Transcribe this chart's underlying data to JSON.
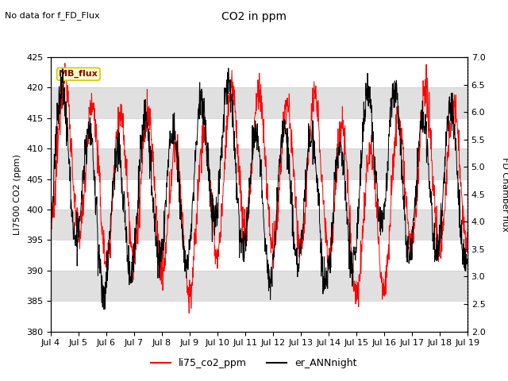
{
  "title": "CO2 in ppm",
  "top_left_text": "No data for f_FD_Flux",
  "ylabel_left": "LI7500 CO2 (ppm)",
  "ylabel_right": "FD Chamber flux",
  "ylim_left": [
    380,
    425
  ],
  "ylim_right": [
    2.0,
    7.0
  ],
  "yticks_left": [
    380,
    385,
    390,
    395,
    400,
    405,
    410,
    415,
    420,
    425
  ],
  "yticks_right": [
    2.0,
    2.5,
    3.0,
    3.5,
    4.0,
    4.5,
    5.0,
    5.5,
    6.0,
    6.5,
    7.0
  ],
  "xtick_labels": [
    "Jul 4",
    "Jul 5",
    "Jul 6",
    "Jul 7",
    "Jul 8",
    "Jul 9",
    "Jul 10",
    "Jul 11",
    "Jul 12",
    "Jul 13",
    "Jul 14",
    "Jul 15",
    "Jul 16",
    "Jul 17",
    "Jul 18",
    "Jul 19"
  ],
  "legend_entries": [
    "li75_co2_ppm",
    "er_ANNnight"
  ],
  "line1_color": "#ff0000",
  "line2_color": "#000000",
  "line1_linewidth": 0.7,
  "line2_linewidth": 0.7,
  "mb_flux_box_facecolor": "#ffffcc",
  "mb_flux_text_color": "#880000",
  "mb_flux_edge_color": "#cccc00",
  "stripe_color": "#e0e0e0",
  "background_color": "#ffffff",
  "title_fontsize": 10,
  "label_fontsize": 8,
  "tick_fontsize": 8
}
